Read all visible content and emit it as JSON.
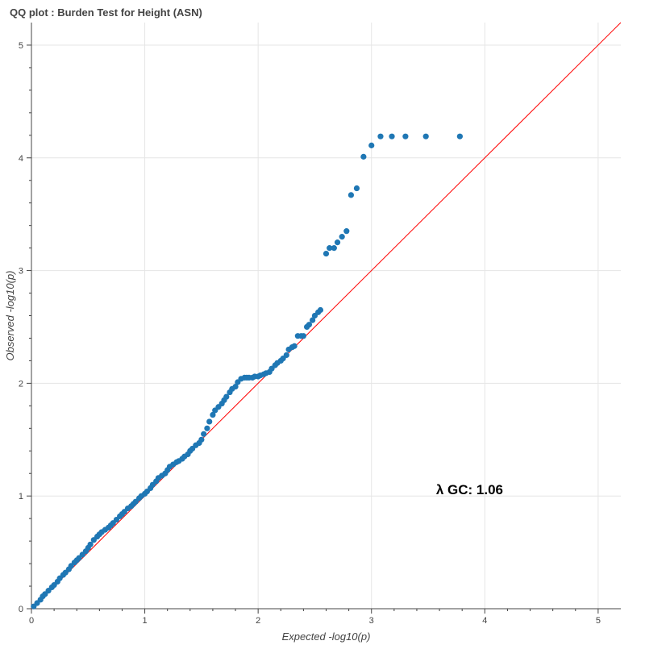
{
  "chart_data": {
    "type": "scatter",
    "title": "QQ plot : Burden Test for Height (ASN)",
    "xlabel": "Expected -log10(p)",
    "ylabel": "Observed -log10(p)",
    "xlim": [
      0,
      5.2
    ],
    "ylim": [
      0,
      5.2
    ],
    "xticks": [
      0,
      1,
      2,
      3,
      4,
      5
    ],
    "yticks": [
      0,
      1,
      2,
      3,
      4,
      5
    ],
    "grid": true,
    "reference_line": {
      "from": [
        0,
        0
      ],
      "to": [
        5.2,
        5.2
      ],
      "color": "#ff0000"
    },
    "annotation": {
      "text": "λ GC: 1.06",
      "x": 3.57,
      "y": 1.06
    },
    "point_color": "#1f77b4",
    "series": [
      {
        "name": "observed",
        "x": [
          0.02,
          0.05,
          0.08,
          0.1,
          0.12,
          0.15,
          0.18,
          0.2,
          0.23,
          0.25,
          0.28,
          0.3,
          0.33,
          0.35,
          0.38,
          0.4,
          0.42,
          0.45,
          0.48,
          0.5,
          0.52,
          0.55,
          0.58,
          0.6,
          0.62,
          0.65,
          0.68,
          0.7,
          0.72,
          0.75,
          0.78,
          0.8,
          0.82,
          0.85,
          0.88,
          0.9,
          0.92,
          0.95,
          0.97,
          1.0,
          1.02,
          1.05,
          1.07,
          1.1,
          1.12,
          1.15,
          1.18,
          1.2,
          1.22,
          1.25,
          1.28,
          1.3,
          1.33,
          1.35,
          1.38,
          1.4,
          1.42,
          1.45,
          1.48,
          1.5,
          1.52,
          1.55,
          1.57,
          1.6,
          1.62,
          1.65,
          1.68,
          1.7,
          1.72,
          1.75,
          1.77,
          1.8,
          1.82,
          1.85,
          1.88,
          1.9,
          1.92,
          1.95,
          1.97,
          2.0,
          2.02,
          2.05,
          2.07,
          2.1,
          2.12,
          2.15,
          2.17,
          2.2,
          2.22,
          2.25,
          2.27,
          2.3,
          2.32,
          2.35,
          2.38,
          2.4,
          2.43,
          2.45,
          2.48,
          2.5,
          2.53,
          2.55,
          2.6,
          2.63,
          2.67,
          2.7,
          2.74,
          2.78,
          2.82,
          2.87,
          2.93,
          3.0,
          3.08,
          3.18,
          3.3,
          3.48,
          3.78
        ],
        "y": [
          0.02,
          0.05,
          0.08,
          0.11,
          0.13,
          0.16,
          0.19,
          0.21,
          0.24,
          0.27,
          0.3,
          0.32,
          0.35,
          0.38,
          0.41,
          0.43,
          0.45,
          0.48,
          0.51,
          0.54,
          0.57,
          0.61,
          0.64,
          0.66,
          0.68,
          0.7,
          0.72,
          0.74,
          0.76,
          0.79,
          0.82,
          0.84,
          0.86,
          0.89,
          0.91,
          0.93,
          0.95,
          0.98,
          1.0,
          1.02,
          1.04,
          1.07,
          1.1,
          1.13,
          1.16,
          1.18,
          1.2,
          1.23,
          1.26,
          1.28,
          1.3,
          1.31,
          1.33,
          1.35,
          1.37,
          1.4,
          1.42,
          1.45,
          1.47,
          1.5,
          1.55,
          1.6,
          1.66,
          1.72,
          1.76,
          1.79,
          1.82,
          1.85,
          1.88,
          1.92,
          1.95,
          1.97,
          2.01,
          2.04,
          2.05,
          2.05,
          2.05,
          2.05,
          2.06,
          2.06,
          2.07,
          2.08,
          2.09,
          2.1,
          2.13,
          2.16,
          2.18,
          2.2,
          2.22,
          2.25,
          2.3,
          2.32,
          2.33,
          2.42,
          2.42,
          2.42,
          2.5,
          2.52,
          2.56,
          2.6,
          2.63,
          2.65,
          3.15,
          3.2,
          3.2,
          3.25,
          3.3,
          3.35,
          3.67,
          3.73,
          4.01,
          4.11,
          4.19,
          4.19,
          4.19,
          4.19,
          4.19
        ]
      }
    ]
  }
}
